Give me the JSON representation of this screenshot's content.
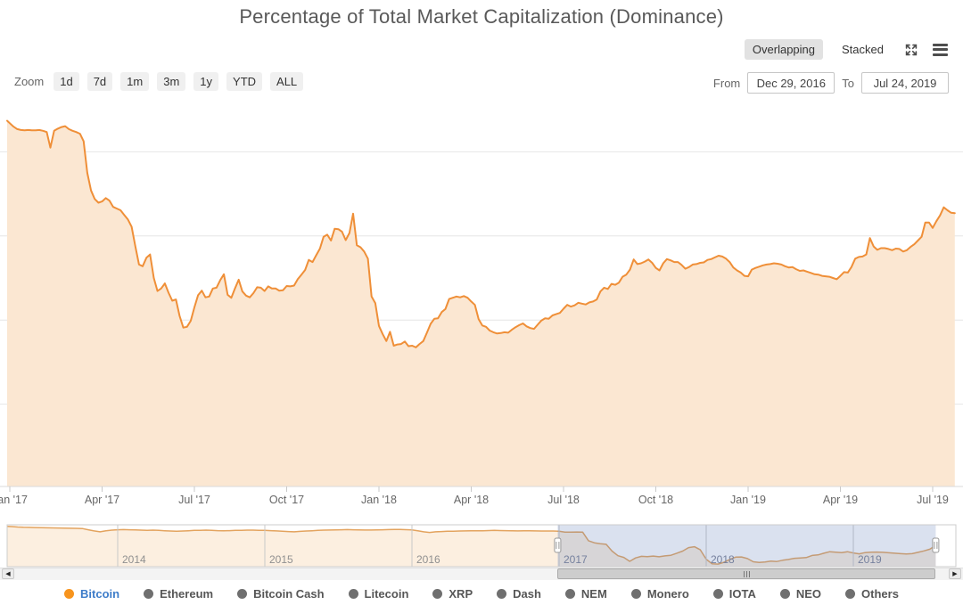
{
  "title": "Percentage of Total Market Capitalization (Dominance)",
  "view_toggle": {
    "overlapping_label": "Overlapping",
    "stacked_label": "Stacked",
    "selected": "Overlapping"
  },
  "zoom": {
    "label": "Zoom",
    "buttons": [
      "1d",
      "7d",
      "1m",
      "3m",
      "1y",
      "YTD",
      "ALL"
    ]
  },
  "range_selector": {
    "from_label": "From",
    "from_value": "Dec 29, 2016",
    "to_label": "To",
    "to_value": "Jul 24, 2019"
  },
  "legend": {
    "items": [
      {
        "label": "Bitcoin",
        "dot_color": "#f7941d",
        "text_color": "#3d7cc9",
        "active": true
      },
      {
        "label": "Ethereum",
        "dot_color": "#6f6f6f",
        "text_color": "#565656",
        "active": false
      },
      {
        "label": "Bitcoin Cash",
        "dot_color": "#6f6f6f",
        "text_color": "#565656",
        "active": false
      },
      {
        "label": "Litecoin",
        "dot_color": "#6f6f6f",
        "text_color": "#565656",
        "active": false
      },
      {
        "label": "XRP",
        "dot_color": "#6f6f6f",
        "text_color": "#565656",
        "active": false
      },
      {
        "label": "Dash",
        "dot_color": "#6f6f6f",
        "text_color": "#565656",
        "active": false
      },
      {
        "label": "NEM",
        "dot_color": "#6f6f6f",
        "text_color": "#565656",
        "active": false
      },
      {
        "label": "Monero",
        "dot_color": "#6f6f6f",
        "text_color": "#565656",
        "active": false
      },
      {
        "label": "IOTA",
        "dot_color": "#6f6f6f",
        "text_color": "#565656",
        "active": false
      },
      {
        "label": "NEO",
        "dot_color": "#6f6f6f",
        "text_color": "#565656",
        "active": false
      },
      {
        "label": "Others",
        "dot_color": "#6f6f6f",
        "text_color": "#565656",
        "active": false
      }
    ]
  },
  "chart_data": {
    "type": "area",
    "title": "Percentage of Total Market Capitalization (Dominance)",
    "yaxis": {
      "min": 0,
      "max": 100,
      "gridline_step": 20,
      "unit": "%",
      "labels_visible": false,
      "grid": true
    },
    "xaxis": {
      "labels": [
        "Jan '17",
        "Apr '17",
        "Jul '17",
        "Oct '17",
        "Jan '18",
        "Apr '18",
        "Jul '18",
        "Oct '18",
        "Jan '19",
        "Apr '19",
        "Jul '19"
      ],
      "label_positions_decimal_year": [
        2017.0,
        2017.25,
        2017.5,
        2017.75,
        2018.0,
        2018.25,
        2018.5,
        2018.75,
        2019.0,
        2019.25,
        2019.5
      ]
    },
    "series": [
      {
        "name": "Bitcoin",
        "line_color": "#ef8f38",
        "fill_color": "#fbe7d2",
        "time_unit": "decimal_year",
        "t_start": 2016.99,
        "t_step": 0.01,
        "values_pct": [
          87.4,
          86.8,
          86.0,
          85.4,
          85.2,
          85.1,
          85.2,
          85.1,
          85.1,
          85.2,
          85.0,
          84.7,
          81.0,
          85.0,
          85.5,
          85.9,
          86.1,
          85.4,
          85.0,
          84.7,
          84.3,
          82.5,
          75.0,
          70.8,
          68.8,
          67.9,
          68.2,
          69.0,
          68.4,
          66.9,
          66.5,
          66.1,
          65.0,
          63.9,
          62.2,
          57.5,
          53.2,
          52.8,
          54.8,
          55.6,
          50.0,
          46.9,
          47.5,
          48.7,
          46.5,
          44.6,
          44.9,
          41.0,
          38.2,
          38.4,
          39.8,
          43.0,
          45.9,
          47.0,
          45.4,
          45.6,
          47.5,
          47.7,
          49.5,
          50.9,
          46.0,
          45.3,
          47.5,
          49.6,
          46.8,
          45.8,
          45.4,
          46.4,
          47.8,
          47.7,
          46.9,
          48.0,
          47.5,
          47.5,
          47.0,
          47.1,
          48.1,
          48.0,
          48.2,
          49.7,
          50.8,
          51.9,
          54.3,
          53.8,
          55.4,
          57.0,
          59.8,
          60.3,
          58.9,
          61.7,
          61.6,
          61.0,
          59.0,
          60.7,
          65.3,
          57.8,
          57.3,
          56.3,
          54.6,
          45.6,
          44.0,
          38.6,
          36.7,
          35.0,
          37.2,
          33.9,
          34.2,
          34.3,
          34.9,
          33.8,
          33.9,
          33.5,
          34.3,
          35.0,
          37.0,
          39.1,
          40.3,
          40.4,
          41.9,
          42.6,
          45.0,
          45.3,
          45.6,
          45.4,
          45.7,
          45.3,
          44.4,
          43.6,
          40.2,
          38.7,
          38.4,
          37.5,
          37.1,
          36.8,
          36.9,
          37.1,
          37.0,
          37.7,
          38.3,
          38.8,
          39.2,
          38.5,
          38.1,
          37.9,
          38.9,
          39.9,
          40.4,
          40.3,
          41.1,
          41.4,
          41.7,
          42.7,
          43.6,
          43.2,
          43.5,
          44.1,
          43.9,
          43.7,
          44.2,
          44.4,
          44.9,
          46.8,
          47.7,
          47.4,
          48.6,
          48.4,
          48.9,
          50.3,
          50.8,
          52.0,
          54.4,
          53.3,
          53.5,
          53.9,
          54.4,
          53.6,
          52.4,
          51.8,
          53.5,
          54.5,
          54.2,
          53.8,
          53.8,
          53.1,
          52.2,
          52.6,
          53.2,
          53.3,
          53.6,
          53.7,
          54.3,
          54.5,
          54.9,
          55.3,
          55.1,
          54.6,
          53.8,
          52.5,
          51.8,
          51.3,
          50.5,
          50.4,
          52.0,
          52.4,
          52.7,
          53.0,
          53.2,
          53.3,
          53.5,
          53.4,
          53.2,
          52.8,
          52.5,
          52.6,
          52.1,
          51.7,
          51.8,
          51.5,
          51.2,
          50.9,
          50.8,
          50.5,
          50.4,
          50.3,
          50.0,
          49.7,
          50.5,
          51.4,
          51.3,
          52.6,
          54.6,
          55.0,
          55.1,
          55.6,
          59.5,
          57.5,
          56.7,
          57.1,
          57.1,
          56.9,
          56.6,
          57.0,
          56.9,
          56.3,
          56.6,
          57.4,
          58.0,
          58.9,
          59.8,
          63.2,
          63.2,
          61.9,
          63.5,
          64.9,
          66.8,
          66.1,
          65.5,
          65.4
        ]
      }
    ],
    "navigator": {
      "year_labels": [
        "2014",
        "2015",
        "2016",
        "2017",
        "2018",
        "2019"
      ],
      "year_positions_decimal_year": [
        2014,
        2015,
        2016,
        2017,
        2018,
        2019
      ],
      "selected_range": {
        "from_t": 2016.99,
        "to_t": 2019.56,
        "from_date": "Dec 29, 2016",
        "to_date": "Jul 24, 2019"
      },
      "line_color": "#e3a35e",
      "fill_color": "#fcefe0",
      "mask_color_rgba": "rgba(101,130,187,0.24)",
      "t_start": 2013.24,
      "t_step": 0.04,
      "values_pct": [
        94.5,
        94.2,
        93.5,
        93.0,
        92.8,
        92.6,
        92.4,
        92.2,
        92.0,
        91.8,
        91.6,
        91.5,
        91.3,
        91.0,
        89.0,
        87.2,
        85.8,
        87.5,
        88.5,
        89.0,
        89.3,
        89.0,
        88.8,
        88.5,
        88.2,
        88.5,
        88.0,
        87.5,
        87.0,
        86.6,
        87.0,
        87.5,
        88.0,
        88.2,
        88.4,
        88.0,
        87.6,
        87.5,
        87.6,
        88.0,
        88.2,
        88.4,
        88.5,
        88.2,
        88.0,
        87.6,
        87.2,
        86.7,
        86.2,
        85.7,
        86.5,
        87.0,
        87.5,
        88.0,
        88.4,
        88.6,
        88.8,
        89.0,
        89.3,
        89.0,
        88.9,
        88.6,
        88.6,
        88.9,
        89.0,
        89.3,
        89.4,
        89.5,
        89.2,
        88.8,
        87.5,
        85.8,
        84.8,
        85.8,
        86.2,
        86.6,
        86.7,
        87.0,
        87.2,
        87.4,
        87.5,
        87.5,
        87.8,
        88.0,
        87.8,
        87.6,
        87.3,
        87.1,
        87.3,
        87.5,
        87.2,
        87.0,
        87.0,
        87.0,
        86.6,
        85.2,
        85.1,
        85.4,
        85.3,
        71.5,
        68.2,
        66.8,
        65.8,
        55.0,
        47.5,
        44.8,
        38.5,
        44.0,
        46.5,
        46.0,
        47.0,
        45.8,
        47.3,
        48.2,
        51.5,
        55.0,
        60.5,
        62.0,
        57.0,
        42.0,
        34.5,
        34.2,
        37.0,
        41.5,
        45.3,
        45.5,
        43.0,
        37.8,
        36.9,
        37.5,
        38.9,
        38.3,
        40.2,
        41.5,
        43.4,
        44.0,
        44.6,
        48.0,
        48.8,
        51.5,
        54.0,
        53.2,
        52.5,
        54.0,
        52.0,
        50.5,
        52.5,
        53.2,
        53.4,
        53.0,
        52.3,
        51.5,
        50.8,
        50.2,
        50.8,
        53.0,
        55.3,
        58.0,
        64.0
      ]
    }
  }
}
